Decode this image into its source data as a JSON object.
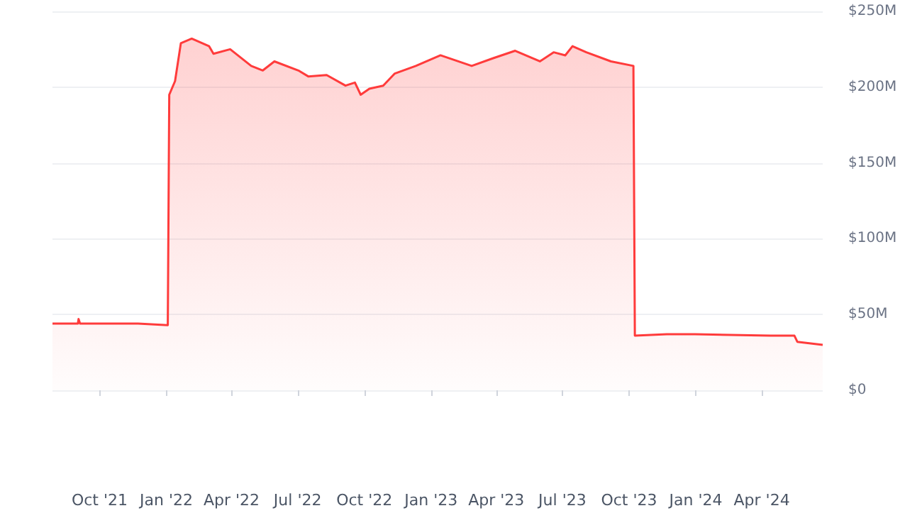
{
  "chart_data": {
    "type": "area",
    "color": "#ff3b3b",
    "x": [
      "2021-07-28",
      "2021-09-01",
      "2021-09-02",
      "2021-09-04",
      "2021-11-23",
      "2022-01-03",
      "2022-01-05",
      "2022-01-13",
      "2022-01-21",
      "2022-02-05",
      "2022-03-01",
      "2022-03-07",
      "2022-03-30",
      "2022-04-28",
      "2022-05-14",
      "2022-05-30",
      "2022-07-02",
      "2022-07-16",
      "2022-08-10",
      "2022-09-05",
      "2022-09-18",
      "2022-09-26",
      "2022-10-08",
      "2022-10-27",
      "2022-11-12",
      "2022-12-11",
      "2023-01-14",
      "2023-02-26",
      "2023-03-27",
      "2023-04-27",
      "2023-05-31",
      "2023-06-19",
      "2023-07-05",
      "2023-07-15",
      "2023-08-03",
      "2023-09-06",
      "2023-10-07",
      "2023-10-09",
      "2023-11-22",
      "2023-12-31",
      "2024-04-13",
      "2024-05-16",
      "2024-05-20",
      "2024-06-24"
    ],
    "values": [
      44,
      44,
      47,
      44,
      44,
      43,
      195,
      204,
      229,
      232,
      227,
      222,
      225,
      214,
      211,
      217,
      211,
      207,
      208,
      201,
      203,
      195,
      199,
      201,
      209,
      214,
      221,
      214,
      219,
      224,
      217,
      223,
      221,
      227,
      223,
      217,
      214,
      36,
      37,
      37,
      36,
      36,
      32,
      30
    ],
    "xlim": [
      "2021-07-28",
      "2024-06-24"
    ],
    "xticks": [
      {
        "value": "2021-10-01",
        "label": "Oct '21"
      },
      {
        "value": "2022-01-01",
        "label": "Jan '22"
      },
      {
        "value": "2022-04-01",
        "label": "Apr '22"
      },
      {
        "value": "2022-07-01",
        "label": "Jul '22"
      },
      {
        "value": "2022-10-01",
        "label": "Oct '22"
      },
      {
        "value": "2023-01-01",
        "label": "Jan '23"
      },
      {
        "value": "2023-04-01",
        "label": "Apr '23"
      },
      {
        "value": "2023-07-01",
        "label": "Jul '23"
      },
      {
        "value": "2023-10-01",
        "label": "Oct '23"
      },
      {
        "value": "2024-01-01",
        "label": "Jan '24"
      },
      {
        "value": "2024-04-01",
        "label": "Apr '24"
      }
    ],
    "ylim": [
      0,
      250
    ],
    "yticks": [
      {
        "value": 0,
        "label": "$0"
      },
      {
        "value": 50,
        "label": "$50M"
      },
      {
        "value": 100,
        "label": "$100M"
      },
      {
        "value": 150,
        "label": "$150M"
      },
      {
        "value": 200,
        "label": "$200M"
      },
      {
        "value": 250,
        "label": "$250M"
      }
    ],
    "grid": "y",
    "marker": "none",
    "line_style": "solid"
  }
}
